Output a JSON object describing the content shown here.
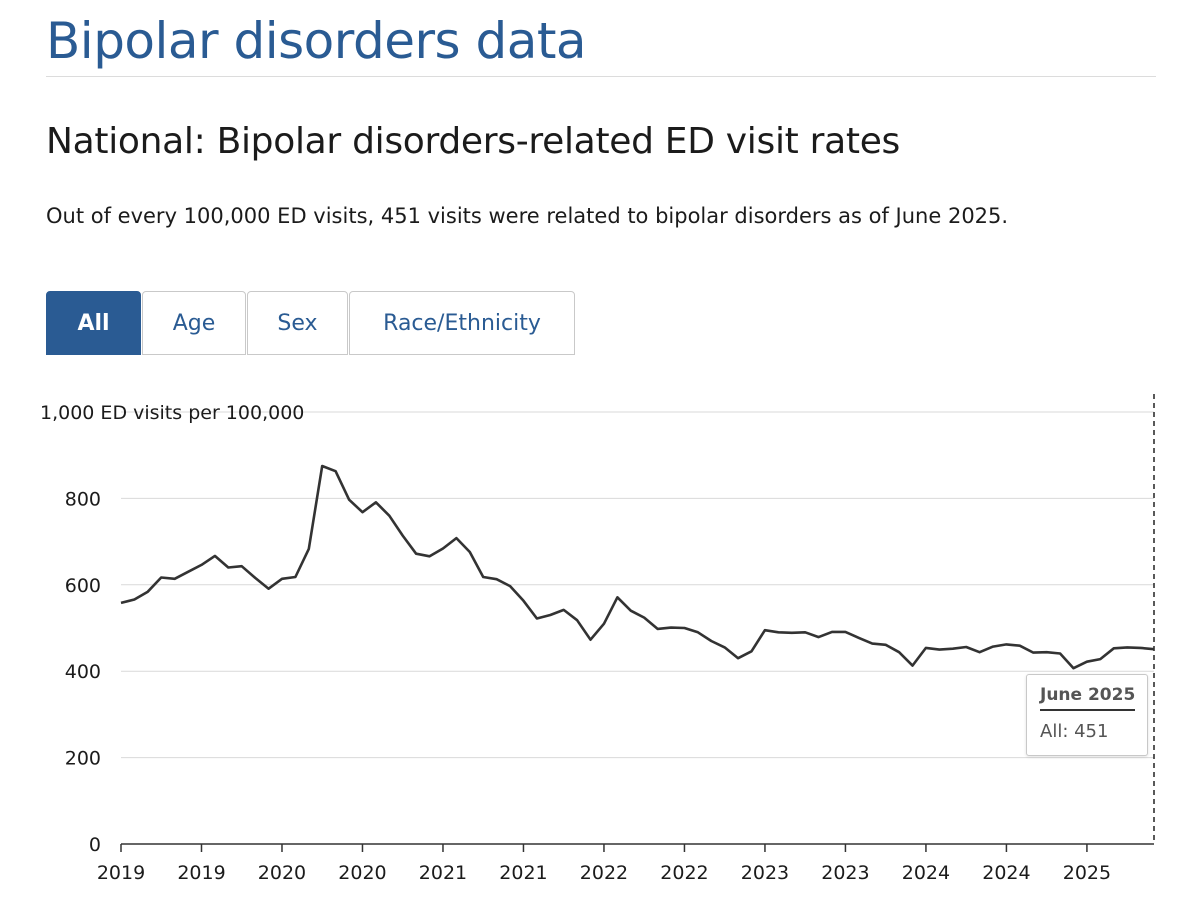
{
  "page": {
    "title": "Bipolar disorders data",
    "section_title": "National: Bipolar disorders-related ED visit rates",
    "summary": "Out of every 100,000 ED visits, 451 visits were related to bipolar disorders as of June 2025."
  },
  "tabs": [
    {
      "label": "All",
      "active": true
    },
    {
      "label": "Age",
      "active": false
    },
    {
      "label": "Sex",
      "active": false
    },
    {
      "label": "Race/Ethnicity",
      "active": false
    }
  ],
  "colors": {
    "accent": "#2a5b93",
    "line": "#333333",
    "grid": "#d9d9d9"
  },
  "tooltip": {
    "title": "June 2025",
    "value": "All: 451"
  },
  "chart_data": {
    "type": "line",
    "title": "National: Bipolar disorders-related ED visit rates",
    "ylabel": "ED visits per 100,000",
    "ylim": [
      0,
      1000
    ],
    "y_ticks": [
      0,
      200,
      400,
      600,
      800,
      1000
    ],
    "y_tick_labels": [
      "0",
      "200",
      "400",
      "600",
      "800",
      "1,000 ED visits per 100,000"
    ],
    "x_tick_labels": [
      "2019",
      "2019",
      "2020",
      "2020",
      "2021",
      "2021",
      "2022",
      "2022",
      "2023",
      "2023",
      "2024",
      "2024",
      "2025"
    ],
    "x_tick_positions": [
      0,
      6,
      12,
      18,
      24,
      30,
      36,
      42,
      48,
      54,
      60,
      66,
      72
    ],
    "series": [
      {
        "name": "All",
        "values": [
          558,
          566,
          584,
          617,
          614,
          630,
          646,
          667,
          640,
          643,
          616,
          591,
          614,
          618,
          683,
          875,
          863,
          797,
          768,
          791,
          760,
          714,
          672,
          666,
          684,
          708,
          676,
          618,
          613,
          597,
          563,
          522,
          530,
          542,
          518,
          473,
          510,
          571,
          540,
          524,
          498,
          501,
          500,
          490,
          470,
          455,
          430,
          446,
          495,
          490,
          489,
          490,
          479,
          491,
          491,
          477,
          464,
          461,
          444,
          413,
          454,
          450,
          452,
          456,
          444,
          457,
          462,
          459,
          443,
          444,
          441,
          407,
          422,
          428,
          453,
          455,
          454,
          451
        ]
      }
    ],
    "highlight": {
      "label": "June 2025",
      "value": 451
    }
  }
}
